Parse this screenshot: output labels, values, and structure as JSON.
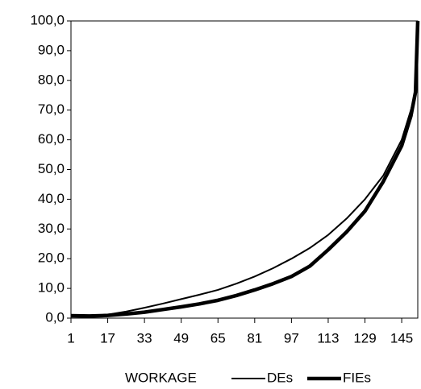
{
  "chart_data": {
    "type": "line",
    "xlabel": "WORKAGE",
    "x": [
      1,
      9,
      17,
      25,
      33,
      41,
      49,
      57,
      65,
      73,
      81,
      89,
      97,
      105,
      113,
      121,
      129,
      137,
      145,
      149,
      151,
      152
    ],
    "series": [
      {
        "name": "DEs",
        "color": "#000000",
        "width": 2,
        "values": [
          0.5,
          0.7,
          1.2,
          2.2,
          3.5,
          4.9,
          6.4,
          7.9,
          9.5,
          11.6,
          14,
          16.8,
          20,
          23.6,
          28,
          33.5,
          40,
          48,
          60,
          70,
          76,
          100
        ]
      },
      {
        "name": "FIEs",
        "color": "#000000",
        "width": 4.5,
        "values": [
          0.8,
          0.7,
          0.9,
          1.4,
          2,
          2.9,
          3.8,
          4.8,
          6,
          7.6,
          9.5,
          11.6,
          14,
          17.5,
          23,
          29,
          36,
          46,
          58,
          68,
          76,
          100
        ]
      }
    ],
    "xlim": [
      1,
      152
    ],
    "xticks": [
      1,
      17,
      33,
      49,
      65,
      81,
      97,
      113,
      129,
      145
    ],
    "ylim": [
      0,
      100
    ],
    "yticks": [
      {
        "value": 0,
        "label": "0,0"
      },
      {
        "value": 10,
        "label": "10,0"
      },
      {
        "value": 20,
        "label": "20,0"
      },
      {
        "value": 30,
        "label": "30,0"
      },
      {
        "value": 40,
        "label": "40,0"
      },
      {
        "value": 50,
        "label": "50,0"
      },
      {
        "value": 60,
        "label": "60,0"
      },
      {
        "value": 70,
        "label": "70,0"
      },
      {
        "value": 80,
        "label": "80,0"
      },
      {
        "value": 90,
        "label": "90,0"
      },
      {
        "value": 100,
        "label": "100,0"
      }
    ],
    "grid": false,
    "legend": "bottom"
  }
}
